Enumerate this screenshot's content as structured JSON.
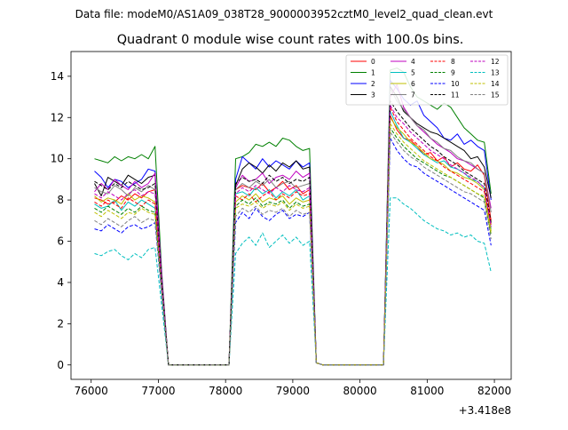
{
  "figure": {
    "suptitle": "Data file: modeM0/AS1A09_038T28_9000003952cztM0_level2_quad_clean.evt",
    "title": "Quadrant 0 module wise count rates with 100.0s bins.",
    "x_offset_label": "+3.418e8"
  },
  "chart_data": {
    "type": "line",
    "title": "Quadrant 0 module wise count rates with 100.0s bins.",
    "xlabel": "",
    "ylabel": "",
    "x_offset": 341800000,
    "xlim": [
      75700,
      82250
    ],
    "ylim": [
      -0.7,
      15.2
    ],
    "xticks": [
      76000,
      77000,
      78000,
      79000,
      80000,
      81000,
      82000
    ],
    "yticks": [
      0,
      2,
      4,
      6,
      8,
      10,
      12,
      14
    ],
    "grid": false,
    "legend": {
      "placement": "top-right",
      "columns": 4
    },
    "x": [
      76050,
      76150,
      76250,
      76350,
      76450,
      76550,
      76650,
      76750,
      76850,
      76950,
      77050,
      77150,
      77250,
      77350,
      77450,
      77550,
      77650,
      77750,
      77850,
      77950,
      78050,
      78150,
      78250,
      78350,
      78450,
      78550,
      78650,
      78750,
      78850,
      78950,
      79050,
      79150,
      79250,
      79350,
      79450,
      79550,
      79650,
      79750,
      79850,
      79950,
      80050,
      80150,
      80250,
      80350,
      80450,
      80550,
      80650,
      80750,
      80850,
      80950,
      81050,
      81150,
      81250,
      81350,
      81450,
      81550,
      81650,
      81750,
      81850,
      81950
    ],
    "series": [
      {
        "name": "0",
        "color": "#ff0000",
        "dash": "solid",
        "values": [
          8.1,
          8.0,
          7.8,
          7.9,
          8.2,
          8.0,
          8.3,
          8.1,
          8.4,
          8.5,
          4.0,
          0,
          0,
          0,
          0,
          0,
          0,
          0,
          0,
          0,
          0,
          8.5,
          8.7,
          8.6,
          8.5,
          8.8,
          8.4,
          8.6,
          8.9,
          8.5,
          8.7,
          8.3,
          8.5,
          0.1,
          0,
          0,
          0,
          0,
          0,
          0,
          0,
          0,
          0,
          0,
          12.1,
          11.4,
          11.0,
          10.9,
          10.6,
          10.2,
          10.3,
          9.9,
          10.1,
          9.6,
          9.8,
          9.5,
          9.4,
          9.7,
          9.2,
          7.0
        ]
      },
      {
        "name": "1",
        "color": "#008000",
        "dash": "solid",
        "values": [
          10.0,
          9.9,
          9.8,
          10.1,
          9.9,
          10.1,
          10.0,
          10.2,
          10.0,
          10.6,
          4.5,
          0,
          0,
          0,
          0,
          0,
          0,
          0,
          0,
          0,
          0,
          10.0,
          10.1,
          10.3,
          10.7,
          10.6,
          10.8,
          10.6,
          11.0,
          10.9,
          10.6,
          10.4,
          10.5,
          0.1,
          0,
          0,
          0,
          0,
          0,
          0,
          0,
          0,
          0,
          0,
          14.3,
          14.4,
          14.2,
          13.5,
          13.0,
          12.8,
          12.6,
          12.4,
          12.7,
          12.5,
          12.0,
          11.5,
          11.2,
          10.9,
          10.8,
          8.3
        ]
      },
      {
        "name": "2",
        "color": "#0000ff",
        "dash": "solid",
        "values": [
          9.4,
          9.1,
          8.6,
          9.0,
          8.9,
          8.6,
          8.8,
          9.0,
          9.5,
          9.4,
          4.3,
          0,
          0,
          0,
          0,
          0,
          0,
          0,
          0,
          0,
          0,
          9.0,
          10.1,
          9.8,
          9.5,
          10.0,
          9.6,
          9.9,
          9.7,
          9.5,
          9.9,
          9.6,
          9.8,
          0.1,
          0,
          0,
          0,
          0,
          0,
          0,
          0,
          0,
          0,
          0,
          13.8,
          13.4,
          12.9,
          12.6,
          12.8,
          12.1,
          11.8,
          11.5,
          11.0,
          10.9,
          11.2,
          10.7,
          10.9,
          10.6,
          10.4,
          8.0
        ]
      },
      {
        "name": "3",
        "color": "#000000",
        "dash": "solid",
        "values": [
          8.8,
          8.2,
          9.1,
          8.9,
          8.7,
          9.2,
          9.0,
          8.8,
          9.1,
          9.2,
          4.2,
          0,
          0,
          0,
          0,
          0,
          0,
          0,
          0,
          0,
          0,
          8.7,
          9.5,
          9.8,
          9.6,
          9.3,
          9.7,
          9.4,
          9.8,
          9.6,
          9.9,
          9.5,
          9.6,
          0.1,
          0,
          0,
          0,
          0,
          0,
          0,
          0,
          0,
          0,
          0,
          13.5,
          13.0,
          12.3,
          12.0,
          11.7,
          11.5,
          11.3,
          11.2,
          11.0,
          10.8,
          10.6,
          10.4,
          10.0,
          10.1,
          9.6,
          8.1
        ]
      },
      {
        "name": "4",
        "color": "#bf00bf",
        "dash": "solid",
        "values": [
          8.4,
          8.8,
          8.5,
          9.0,
          8.7,
          8.5,
          8.9,
          8.6,
          8.8,
          9.3,
          4.3,
          0,
          0,
          0,
          0,
          0,
          0,
          0,
          0,
          0,
          0,
          8.6,
          9.2,
          8.9,
          9.0,
          9.3,
          8.8,
          9.1,
          9.2,
          9.0,
          9.4,
          9.1,
          9.3,
          0.1,
          0,
          0,
          0,
          0,
          0,
          0,
          0,
          0,
          0,
          0,
          13.0,
          13.6,
          12.5,
          12.0,
          11.6,
          11.3,
          11.0,
          10.7,
          10.5,
          10.3,
          10.0,
          9.9,
          9.7,
          9.5,
          9.3,
          7.6
        ]
      },
      {
        "name": "5",
        "color": "#00bfbf",
        "dash": "solid",
        "values": [
          7.8,
          7.6,
          7.7,
          8.0,
          7.5,
          7.9,
          7.7,
          8.0,
          7.8,
          7.6,
          3.8,
          0,
          0,
          0,
          0,
          0,
          0,
          0,
          0,
          0,
          0,
          8.3,
          8.4,
          8.2,
          8.6,
          8.3,
          8.5,
          8.1,
          8.4,
          8.2,
          8.5,
          8.0,
          8.2,
          0.1,
          0,
          0,
          0,
          0,
          0,
          0,
          0,
          0,
          0,
          0,
          12.3,
          11.6,
          11.0,
          10.8,
          10.5,
          10.2,
          10.0,
          9.8,
          9.9,
          9.6,
          9.5,
          9.3,
          9.0,
          8.9,
          8.6,
          6.6
        ]
      },
      {
        "name": "6",
        "color": "#bfbf00",
        "dash": "solid",
        "values": [
          8.2,
          7.9,
          8.1,
          8.0,
          7.8,
          8.3,
          8.0,
          8.2,
          8.1,
          7.9,
          3.9,
          0,
          0,
          0,
          0,
          0,
          0,
          0,
          0,
          0,
          0,
          7.9,
          8.2,
          8.0,
          8.3,
          7.9,
          8.1,
          8.0,
          8.2,
          7.8,
          8.1,
          7.9,
          8.0,
          0.1,
          0,
          0,
          0,
          0,
          0,
          0,
          0,
          0,
          0,
          0,
          12.0,
          11.5,
          11.2,
          10.8,
          10.6,
          10.3,
          10.0,
          9.9,
          9.7,
          9.4,
          9.3,
          9.1,
          9.0,
          8.8,
          8.5,
          6.5
        ]
      },
      {
        "name": "7",
        "color": "#808080",
        "dash": "solid",
        "values": [
          8.6,
          8.4,
          8.3,
          8.7,
          8.5,
          8.2,
          8.6,
          8.4,
          8.7,
          8.5,
          4.1,
          0,
          0,
          0,
          0,
          0,
          0,
          0,
          0,
          0,
          0,
          8.5,
          8.8,
          8.6,
          8.9,
          8.7,
          9.0,
          8.6,
          8.8,
          8.9,
          8.6,
          8.7,
          8.8,
          0.1,
          0,
          0,
          0,
          0,
          0,
          0,
          0,
          0,
          0,
          0,
          13.4,
          12.8,
          12.4,
          12.0,
          11.6,
          11.4,
          11.0,
          10.8,
          10.5,
          10.4,
          10.1,
          9.9,
          9.8,
          9.5,
          9.3,
          7.4
        ]
      },
      {
        "name": "8",
        "color": "#ff0000",
        "dash": "dashed",
        "values": [
          7.9,
          7.7,
          8.0,
          7.8,
          7.6,
          8.1,
          7.9,
          7.7,
          8.0,
          7.8,
          3.8,
          0,
          0,
          0,
          0,
          0,
          0,
          0,
          0,
          0,
          0,
          8.2,
          8.0,
          8.3,
          7.9,
          8.2,
          8.4,
          8.0,
          8.3,
          8.1,
          8.4,
          8.2,
          8.3,
          0.1,
          0,
          0,
          0,
          0,
          0,
          0,
          0,
          0,
          0,
          0,
          12.5,
          11.8,
          11.4,
          11.0,
          10.7,
          10.4,
          10.1,
          9.9,
          9.6,
          9.4,
          9.2,
          9.0,
          8.8,
          8.6,
          8.4,
          6.8
        ]
      },
      {
        "name": "9",
        "color": "#008000",
        "dash": "dashed",
        "values": [
          7.6,
          7.4,
          7.7,
          7.5,
          7.3,
          7.6,
          7.4,
          7.7,
          7.5,
          7.4,
          3.6,
          0,
          0,
          0,
          0,
          0,
          0,
          0,
          0,
          0,
          0,
          7.7,
          8.0,
          7.8,
          8.1,
          7.7,
          7.9,
          7.8,
          8.0,
          7.6,
          7.9,
          7.7,
          7.8,
          0.1,
          0,
          0,
          0,
          0,
          0,
          0,
          0,
          0,
          0,
          0,
          11.5,
          11.0,
          10.6,
          10.3,
          10.0,
          9.8,
          9.6,
          9.4,
          9.2,
          9.1,
          8.9,
          8.7,
          8.5,
          8.3,
          8.1,
          6.3
        ]
      },
      {
        "name": "10",
        "color": "#0000ff",
        "dash": "dashed",
        "values": [
          6.6,
          6.5,
          6.8,
          6.6,
          6.4,
          6.7,
          6.8,
          6.6,
          6.7,
          6.9,
          3.4,
          0,
          0,
          0,
          0,
          0,
          0,
          0,
          0,
          0,
          0,
          6.9,
          7.4,
          7.1,
          7.6,
          7.2,
          7.0,
          7.3,
          7.5,
          7.1,
          7.3,
          7.2,
          7.4,
          0.1,
          0,
          0,
          0,
          0,
          0,
          0,
          0,
          0,
          0,
          0,
          11.0,
          10.4,
          10.0,
          9.7,
          9.6,
          9.3,
          9.1,
          8.9,
          8.7,
          8.5,
          8.3,
          8.1,
          7.9,
          7.7,
          7.5,
          5.8
        ]
      },
      {
        "name": "11",
        "color": "#000000",
        "dash": "dashed",
        "values": [
          8.9,
          8.7,
          8.5,
          8.8,
          8.6,
          8.9,
          8.7,
          8.5,
          8.6,
          8.8,
          4.1,
          0,
          0,
          0,
          0,
          0,
          0,
          0,
          0,
          0,
          0,
          8.8,
          9.1,
          8.9,
          9.0,
          8.8,
          9.2,
          8.9,
          9.1,
          8.8,
          9.0,
          8.9,
          9.1,
          0.1,
          0,
          0,
          0,
          0,
          0,
          0,
          0,
          0,
          0,
          0,
          12.8,
          12.3,
          11.9,
          11.5,
          11.2,
          10.9,
          10.6,
          10.4,
          10.1,
          9.9,
          9.7,
          9.4,
          9.2,
          9.0,
          8.8,
          6.9
        ]
      },
      {
        "name": "12",
        "color": "#bf00bf",
        "dash": "dashed",
        "values": [
          8.3,
          8.1,
          8.4,
          8.2,
          8.0,
          8.3,
          8.5,
          8.2,
          8.4,
          8.3,
          4.0,
          0,
          0,
          0,
          0,
          0,
          0,
          0,
          0,
          0,
          0,
          8.3,
          8.6,
          8.4,
          8.7,
          8.5,
          8.3,
          8.6,
          8.4,
          8.7,
          8.5,
          8.4,
          8.6,
          0.1,
          0,
          0,
          0,
          0,
          0,
          0,
          0,
          0,
          0,
          0,
          12.6,
          12.0,
          11.7,
          11.3,
          11.0,
          10.7,
          10.4,
          10.2,
          10.0,
          9.7,
          9.5,
          9.3,
          9.1,
          8.9,
          8.6,
          6.7
        ]
      },
      {
        "name": "13",
        "color": "#00bfbf",
        "dash": "dashed",
        "values": [
          5.4,
          5.3,
          5.5,
          5.6,
          5.3,
          5.1,
          5.4,
          5.2,
          5.6,
          5.7,
          2.9,
          0,
          0,
          0,
          0,
          0,
          0,
          0,
          0,
          0,
          0,
          5.4,
          5.9,
          6.2,
          5.8,
          6.4,
          5.7,
          6.0,
          6.3,
          5.9,
          6.2,
          5.8,
          6.0,
          0.1,
          0,
          0,
          0,
          0,
          0,
          0,
          0,
          0,
          0,
          0,
          8.1,
          8.1,
          7.8,
          7.6,
          7.3,
          7.0,
          6.8,
          6.6,
          6.5,
          6.3,
          6.4,
          6.2,
          6.3,
          6.0,
          5.9,
          4.5
        ]
      },
      {
        "name": "14",
        "color": "#bfbf00",
        "dash": "dashed",
        "values": [
          7.4,
          7.2,
          7.5,
          7.3,
          7.1,
          7.4,
          7.3,
          7.6,
          7.4,
          7.3,
          3.6,
          0,
          0,
          0,
          0,
          0,
          0,
          0,
          0,
          0,
          0,
          7.6,
          7.8,
          7.7,
          7.9,
          7.6,
          7.8,
          7.7,
          7.9,
          7.5,
          7.8,
          7.6,
          7.7,
          0.1,
          0,
          0,
          0,
          0,
          0,
          0,
          0,
          0,
          0,
          0,
          11.7,
          11.2,
          10.8,
          10.5,
          10.2,
          9.9,
          9.7,
          9.5,
          9.3,
          9.1,
          8.9,
          8.7,
          8.5,
          8.3,
          8.2,
          6.4
        ]
      },
      {
        "name": "15",
        "color": "#808080",
        "dash": "dashed",
        "values": [
          7.0,
          6.8,
          7.1,
          6.9,
          6.7,
          7.0,
          7.2,
          6.9,
          7.1,
          7.0,
          3.5,
          0,
          0,
          0,
          0,
          0,
          0,
          0,
          0,
          0,
          0,
          7.2,
          7.6,
          7.4,
          7.7,
          7.3,
          7.5,
          7.4,
          7.6,
          7.2,
          7.5,
          7.3,
          7.4,
          0.1,
          0,
          0,
          0,
          0,
          0,
          0,
          0,
          0,
          0,
          0,
          11.3,
          10.8,
          10.4,
          10.1,
          9.9,
          9.6,
          9.4,
          9.2,
          9.0,
          8.8,
          8.6,
          8.4,
          8.3,
          8.1,
          7.9,
          6.1
        ]
      }
    ]
  }
}
